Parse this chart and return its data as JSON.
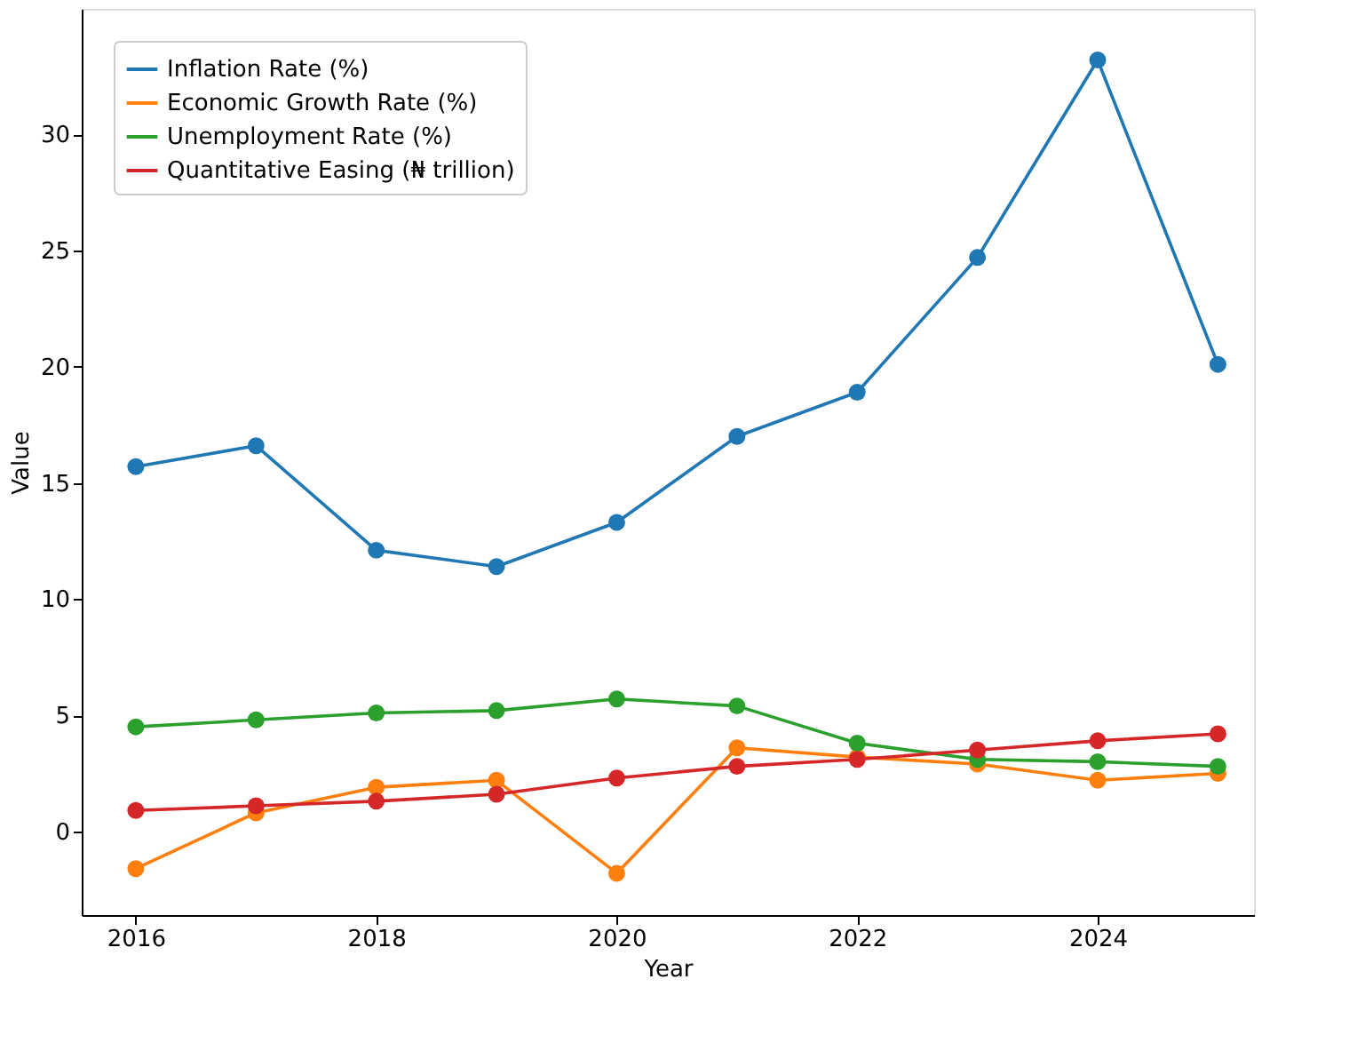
{
  "chart_data": {
    "type": "line",
    "xlabel": "Year",
    "ylabel": "Value",
    "x": [
      2016,
      2017,
      2018,
      2019,
      2020,
      2021,
      2022,
      2023,
      2024,
      2025
    ],
    "series": [
      {
        "name": "Inflation Rate (%)",
        "color": "#1f77b4",
        "values": [
          15.7,
          16.6,
          12.1,
          11.4,
          13.3,
          17.0,
          18.9,
          24.7,
          33.2,
          20.1
        ]
      },
      {
        "name": "Economic Growth Rate (%)",
        "color": "#ff7f0e",
        "values": [
          -1.6,
          0.8,
          1.9,
          2.2,
          -1.8,
          3.6,
          3.2,
          2.9,
          2.2,
          2.5
        ]
      },
      {
        "name": "Unemployment Rate (%)",
        "color": "#2ca02c",
        "values": [
          4.5,
          4.8,
          5.1,
          5.2,
          5.7,
          5.4,
          3.8,
          3.1,
          3.0,
          2.8
        ]
      },
      {
        "name": "Quantitative Easing (₦ trillion)",
        "color": "#d62728",
        "values": [
          0.9,
          1.1,
          1.3,
          1.6,
          2.3,
          2.8,
          3.1,
          3.5,
          3.9,
          4.2
        ]
      }
    ],
    "xlim": [
      2015.55,
      2025.3
    ],
    "ylim": [
      -3.6,
      35.4
    ],
    "xticks": [
      2016,
      2018,
      2020,
      2022,
      2024
    ],
    "yticks": [
      0,
      5,
      10,
      15,
      20,
      25,
      30
    ],
    "marker": "circle",
    "line_style": "solid",
    "grid": false,
    "legend": "top left"
  }
}
